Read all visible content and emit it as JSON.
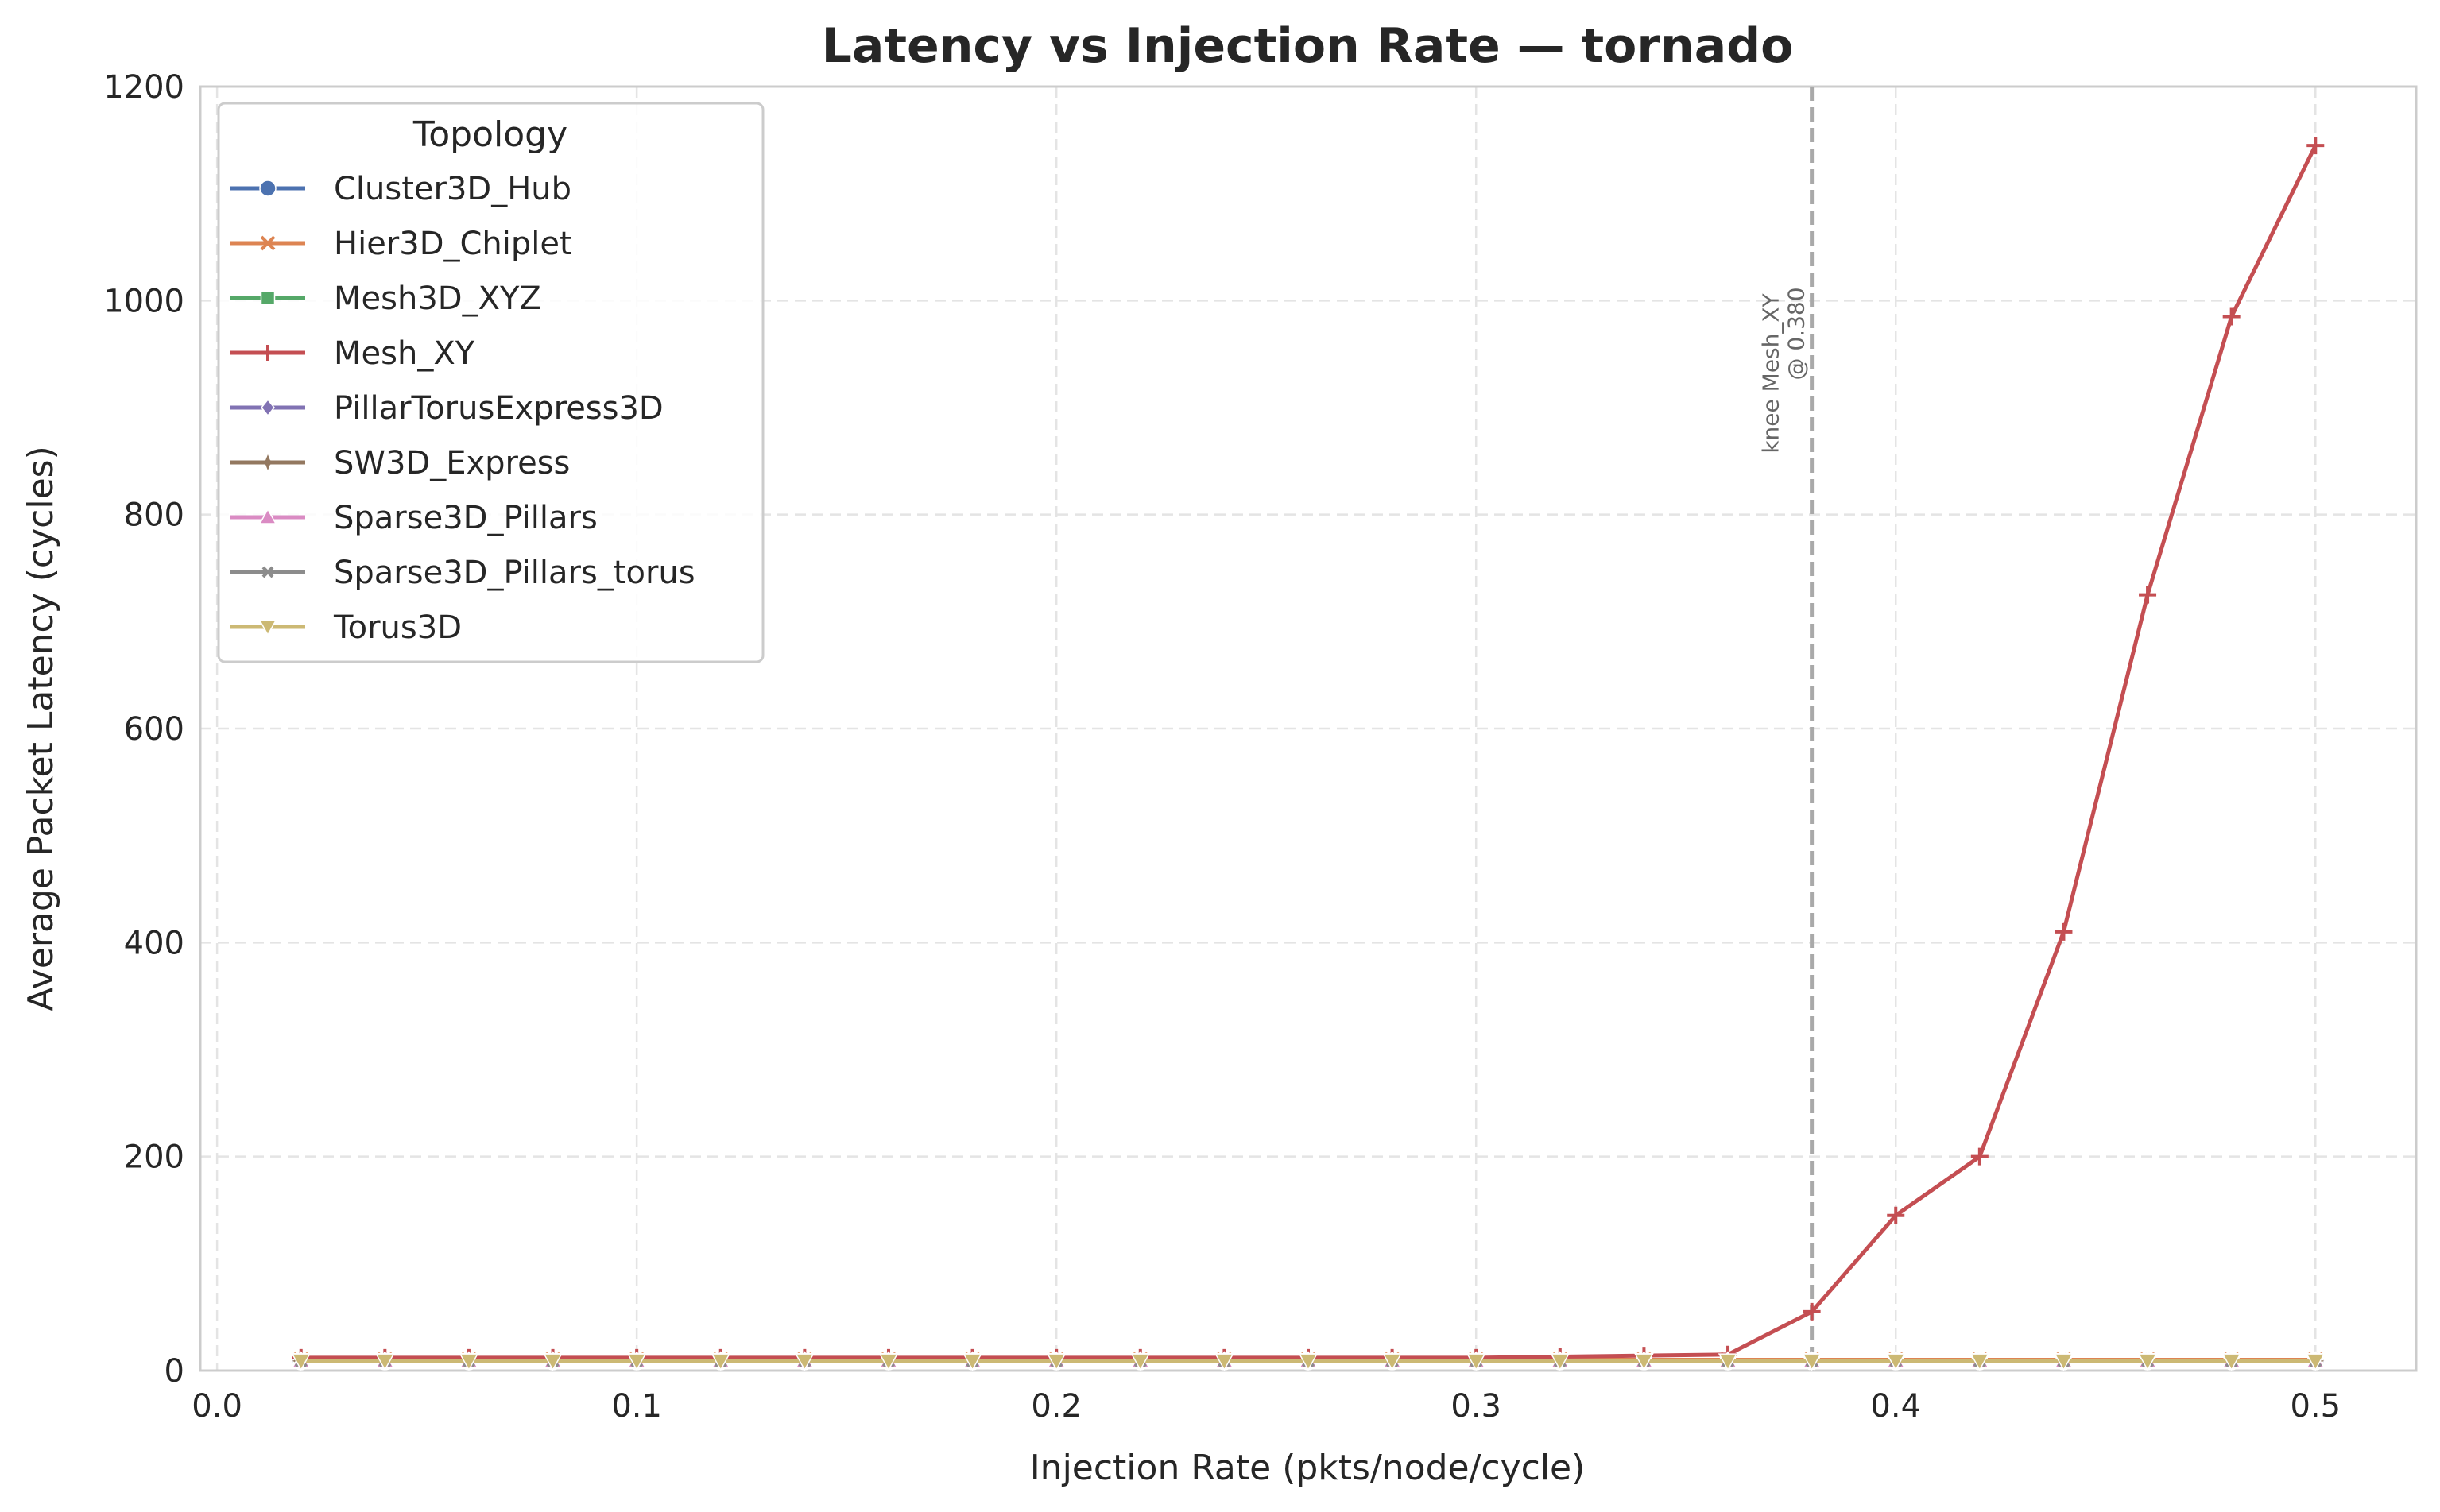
{
  "chart_data": {
    "type": "line",
    "title": "Latency vs Injection Rate — tornado",
    "xlabel": "Injection Rate (pkts/node/cycle)",
    "ylabel": "Average Packet Latency (cycles)",
    "xlim": [
      -0.004,
      0.524
    ],
    "ylim": [
      0,
      1200
    ],
    "xticks": [
      0.0,
      0.1,
      0.2,
      0.3,
      0.4,
      0.5
    ],
    "xtick_labels": [
      "0.0",
      "0.1",
      "0.2",
      "0.3",
      "0.4",
      "0.5"
    ],
    "yticks": [
      0,
      200,
      400,
      600,
      800,
      1000,
      1200
    ],
    "ytick_labels": [
      "0",
      "200",
      "400",
      "600",
      "800",
      "1000",
      "1200"
    ],
    "grid": true,
    "legend": {
      "title": "Topology",
      "placement": "top-left"
    },
    "x": [
      0.02,
      0.04,
      0.06,
      0.08,
      0.1,
      0.12,
      0.14,
      0.16,
      0.18,
      0.2,
      0.22,
      0.24,
      0.26,
      0.28,
      0.3,
      0.32,
      0.34,
      0.36,
      0.38,
      0.4,
      0.42,
      0.44,
      0.46,
      0.48,
      0.5
    ],
    "series": [
      {
        "name": "Cluster3D_Hub",
        "color": "#4c72b0",
        "marker": "circle",
        "values": [
          9,
          9,
          9,
          9,
          9,
          9,
          9,
          9,
          9,
          9,
          9,
          9,
          9,
          9,
          9,
          9,
          9,
          9,
          9,
          9,
          9,
          9,
          9,
          9,
          9
        ]
      },
      {
        "name": "Hier3D_Chiplet",
        "color": "#dd8452",
        "marker": "x",
        "values": [
          10,
          10,
          10,
          10,
          10,
          10,
          10,
          10,
          10,
          10,
          10,
          10,
          10,
          10,
          10,
          10,
          10,
          10,
          10,
          10,
          10,
          10,
          10,
          10,
          10
        ]
      },
      {
        "name": "Mesh3D_XYZ",
        "color": "#55a868",
        "marker": "square",
        "values": [
          9,
          9,
          9,
          9,
          9,
          9,
          9,
          9,
          9,
          9,
          9,
          9,
          9,
          9,
          9,
          9,
          9,
          9,
          9,
          9,
          9,
          9,
          9,
          9,
          9
        ]
      },
      {
        "name": "Mesh_XY",
        "color": "#c44e52",
        "marker": "plus",
        "values": [
          12,
          12,
          12,
          12,
          12,
          12,
          12,
          12,
          12,
          12,
          12,
          12,
          12,
          12,
          12,
          13,
          14,
          15,
          55,
          145,
          200,
          410,
          725,
          985,
          1145
        ]
      },
      {
        "name": "PillarTorusExpress3D",
        "color": "#8172b3",
        "marker": "diamond",
        "values": [
          9,
          9,
          9,
          9,
          9,
          9,
          9,
          9,
          9,
          9,
          9,
          9,
          9,
          9,
          9,
          9,
          9,
          9,
          9,
          9,
          9,
          9,
          9,
          9,
          9
        ]
      },
      {
        "name": "SW3D_Express",
        "color": "#937860",
        "marker": "star",
        "values": [
          9,
          9,
          9,
          9,
          9,
          9,
          9,
          9,
          9,
          9,
          9,
          9,
          9,
          9,
          9,
          9,
          9,
          9,
          9,
          9,
          9,
          9,
          9,
          9,
          9
        ]
      },
      {
        "name": "Sparse3D_Pillars",
        "color": "#da8bc3",
        "marker": "triangle-up",
        "values": [
          9,
          9,
          9,
          9,
          9,
          9,
          9,
          9,
          9,
          9,
          9,
          9,
          9,
          9,
          9,
          9,
          9,
          9,
          9,
          9,
          9,
          9,
          9,
          9,
          9
        ]
      },
      {
        "name": "Sparse3D_Pillars_torus",
        "color": "#8c8c8c",
        "marker": "x-small",
        "values": [
          9,
          9,
          9,
          9,
          9,
          9,
          9,
          9,
          9,
          9,
          9,
          9,
          9,
          9,
          9,
          9,
          9,
          9,
          9,
          9,
          9,
          9,
          9,
          9,
          9
        ]
      },
      {
        "name": "Torus3D",
        "color": "#ccb974",
        "marker": "triangle-down",
        "values": [
          9,
          9,
          9,
          9,
          9,
          9,
          9,
          9,
          9,
          9,
          9,
          9,
          9,
          9,
          9,
          9,
          9,
          9,
          9,
          9,
          9,
          9,
          9,
          9,
          9
        ]
      }
    ],
    "annotations": [
      {
        "type": "vline",
        "x": 0.38,
        "color": "#a9a9a9",
        "style": "dashed",
        "label_line1": "knee Mesh_XY",
        "label_line2": "@ 0.380"
      }
    ]
  }
}
